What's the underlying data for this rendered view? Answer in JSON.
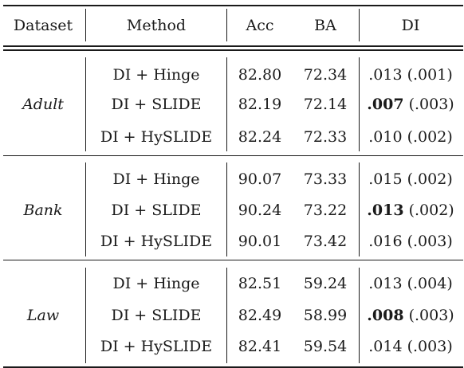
{
  "columns": [
    "Dataset",
    "Method",
    "Acc",
    "BA",
    "DI"
  ],
  "groups": [
    {
      "dataset": "Adult",
      "rows": [
        {
          "method": "DI + Hinge",
          "acc": "82.80",
          "ba": "72.34",
          "di_main": ".013",
          "di_std": "(.001)",
          "di_bold": false
        },
        {
          "method": "DI + SLIDE",
          "acc": "82.19",
          "ba": "72.14",
          "di_main": ".007",
          "di_std": "(.003)",
          "di_bold": true
        },
        {
          "method": "DI + HySLIDE",
          "acc": "82.24",
          "ba": "72.33",
          "di_main": ".010",
          "di_std": "(.002)",
          "di_bold": false
        }
      ]
    },
    {
      "dataset": "Bank",
      "rows": [
        {
          "method": "DI + Hinge",
          "acc": "90.07",
          "ba": "73.33",
          "di_main": ".015",
          "di_std": "(.002)",
          "di_bold": false
        },
        {
          "method": "DI + SLIDE",
          "acc": "90.24",
          "ba": "73.22",
          "di_main": ".013",
          "di_std": "(.002)",
          "di_bold": true
        },
        {
          "method": "DI + HySLIDE",
          "acc": "90.01",
          "ba": "73.42",
          "di_main": ".016",
          "di_std": "(.003)",
          "di_bold": false
        }
      ]
    },
    {
      "dataset": "Law",
      "rows": [
        {
          "method": "DI + Hinge",
          "acc": "82.51",
          "ba": "59.24",
          "di_main": ".013",
          "di_std": "(.004)",
          "di_bold": false
        },
        {
          "method": "DI + SLIDE",
          "acc": "82.49",
          "ba": "58.99",
          "di_main": ".008",
          "di_std": "(.003)",
          "di_bold": true
        },
        {
          "method": "DI + HySLIDE",
          "acc": "82.41",
          "ba": "59.54",
          "di_main": ".014",
          "di_std": "(.003)",
          "di_bold": false
        }
      ]
    }
  ]
}
